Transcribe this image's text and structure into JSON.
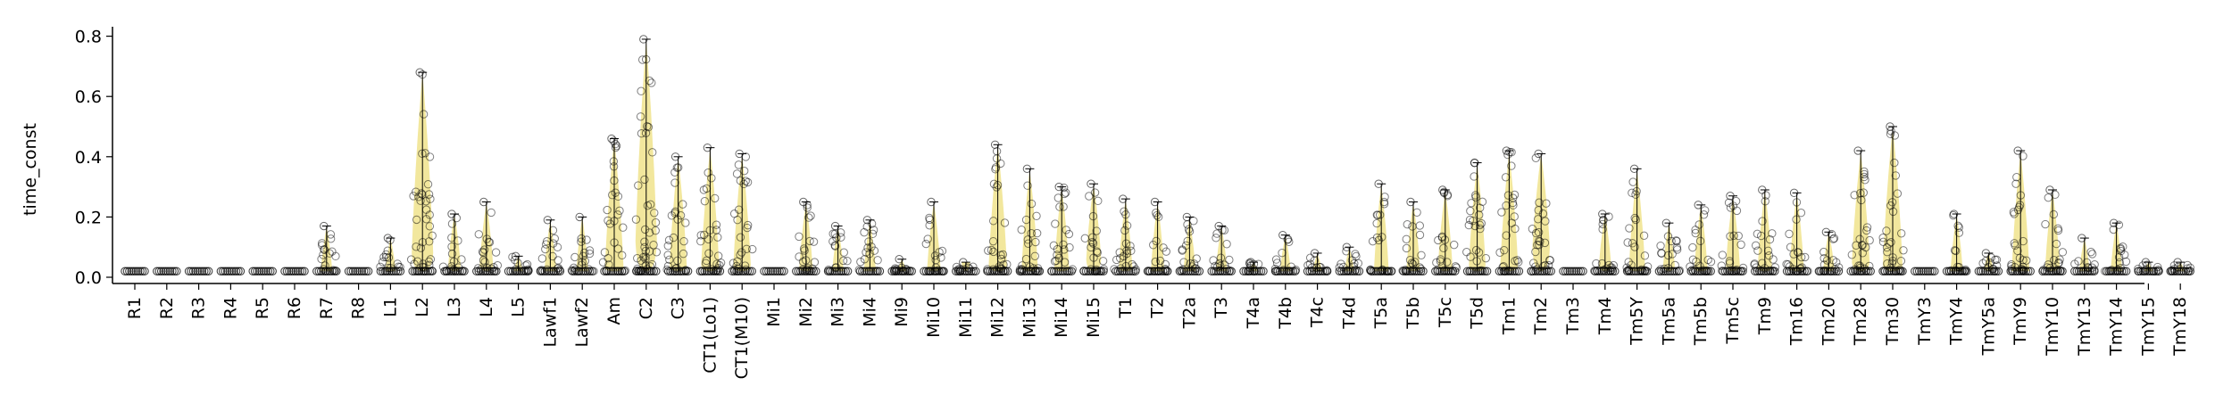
{
  "chart_data": {
    "type": "scatter",
    "title": "",
    "xlabel": "",
    "ylabel": "time_const",
    "ylim": [
      0,
      0.83
    ],
    "yticks": [
      "0.0",
      "0.2",
      "0.4",
      "0.6",
      "0.8"
    ],
    "grid": false,
    "legend": "none",
    "colors": {
      "violin": "#e8d44d",
      "point_stroke": "#000000",
      "whisker": "#000000"
    },
    "categories": [
      "R1",
      "R2",
      "R3",
      "R4",
      "R5",
      "R6",
      "R7",
      "R8",
      "L1",
      "L2",
      "L3",
      "L4",
      "L5",
      "Lawf1",
      "Lawf2",
      "Am",
      "C2",
      "C3",
      "CT1(Lo1)",
      "CT1(M10)",
      "Mi1",
      "Mi2",
      "Mi3",
      "Mi4",
      "Mi9",
      "Mi10",
      "Mi11",
      "Mi12",
      "Mi13",
      "Mi14",
      "Mi15",
      "T1",
      "T2",
      "T2a",
      "T3",
      "T4a",
      "T4b",
      "T4c",
      "T4d",
      "T5a",
      "T5b",
      "T5c",
      "T5d",
      "Tm1",
      "Tm2",
      "Tm3",
      "Tm4",
      "Tm5Y",
      "Tm5a",
      "Tm5b",
      "Tm5c",
      "Tm9",
      "Tm16",
      "Tm20",
      "Tm28",
      "Tm30",
      "TmY3",
      "TmY4",
      "TmY5a",
      "TmY9",
      "TmY10",
      "TmY13",
      "TmY14",
      "TmY15",
      "TmY18"
    ],
    "max_values": [
      0.02,
      0.02,
      0.02,
      0.02,
      0.02,
      0.02,
      0.17,
      0.02,
      0.13,
      0.68,
      0.21,
      0.25,
      0.07,
      0.19,
      0.2,
      0.46,
      0.79,
      0.4,
      0.43,
      0.41,
      0.02,
      0.25,
      0.17,
      0.19,
      0.06,
      0.25,
      0.05,
      0.44,
      0.36,
      0.3,
      0.31,
      0.26,
      0.25,
      0.2,
      0.17,
      0.05,
      0.14,
      0.08,
      0.1,
      0.31,
      0.25,
      0.29,
      0.38,
      0.42,
      0.41,
      0.02,
      0.21,
      0.36,
      0.18,
      0.24,
      0.27,
      0.29,
      0.28,
      0.15,
      0.42,
      0.5,
      0.02,
      0.21,
      0.08,
      0.42,
      0.29,
      0.13,
      0.18,
      0.05,
      0.05
    ],
    "median_values": [
      0.02,
      0.02,
      0.02,
      0.02,
      0.02,
      0.02,
      0.02,
      0.02,
      0.02,
      0.08,
      0.04,
      0.04,
      0.02,
      0.02,
      0.02,
      0.03,
      0.12,
      0.04,
      0.04,
      0.04,
      0.02,
      0.03,
      0.02,
      0.02,
      0.02,
      0.03,
      0.05,
      0.04,
      0.03,
      0.03,
      0.06,
      0.03,
      0.02,
      0.02,
      0.02,
      0.02,
      0.02,
      0.02,
      0.02,
      0.02,
      0.03,
      0.04,
      0.04,
      0.04,
      0.1,
      0.02,
      0.04,
      0.03,
      0.04,
      0.03,
      0.04,
      0.03,
      0.03,
      0.03,
      0.05,
      0.04,
      0.02,
      0.02,
      0.03,
      0.02,
      0.04,
      0.02,
      0.02,
      0.02,
      0.02
    ]
  }
}
